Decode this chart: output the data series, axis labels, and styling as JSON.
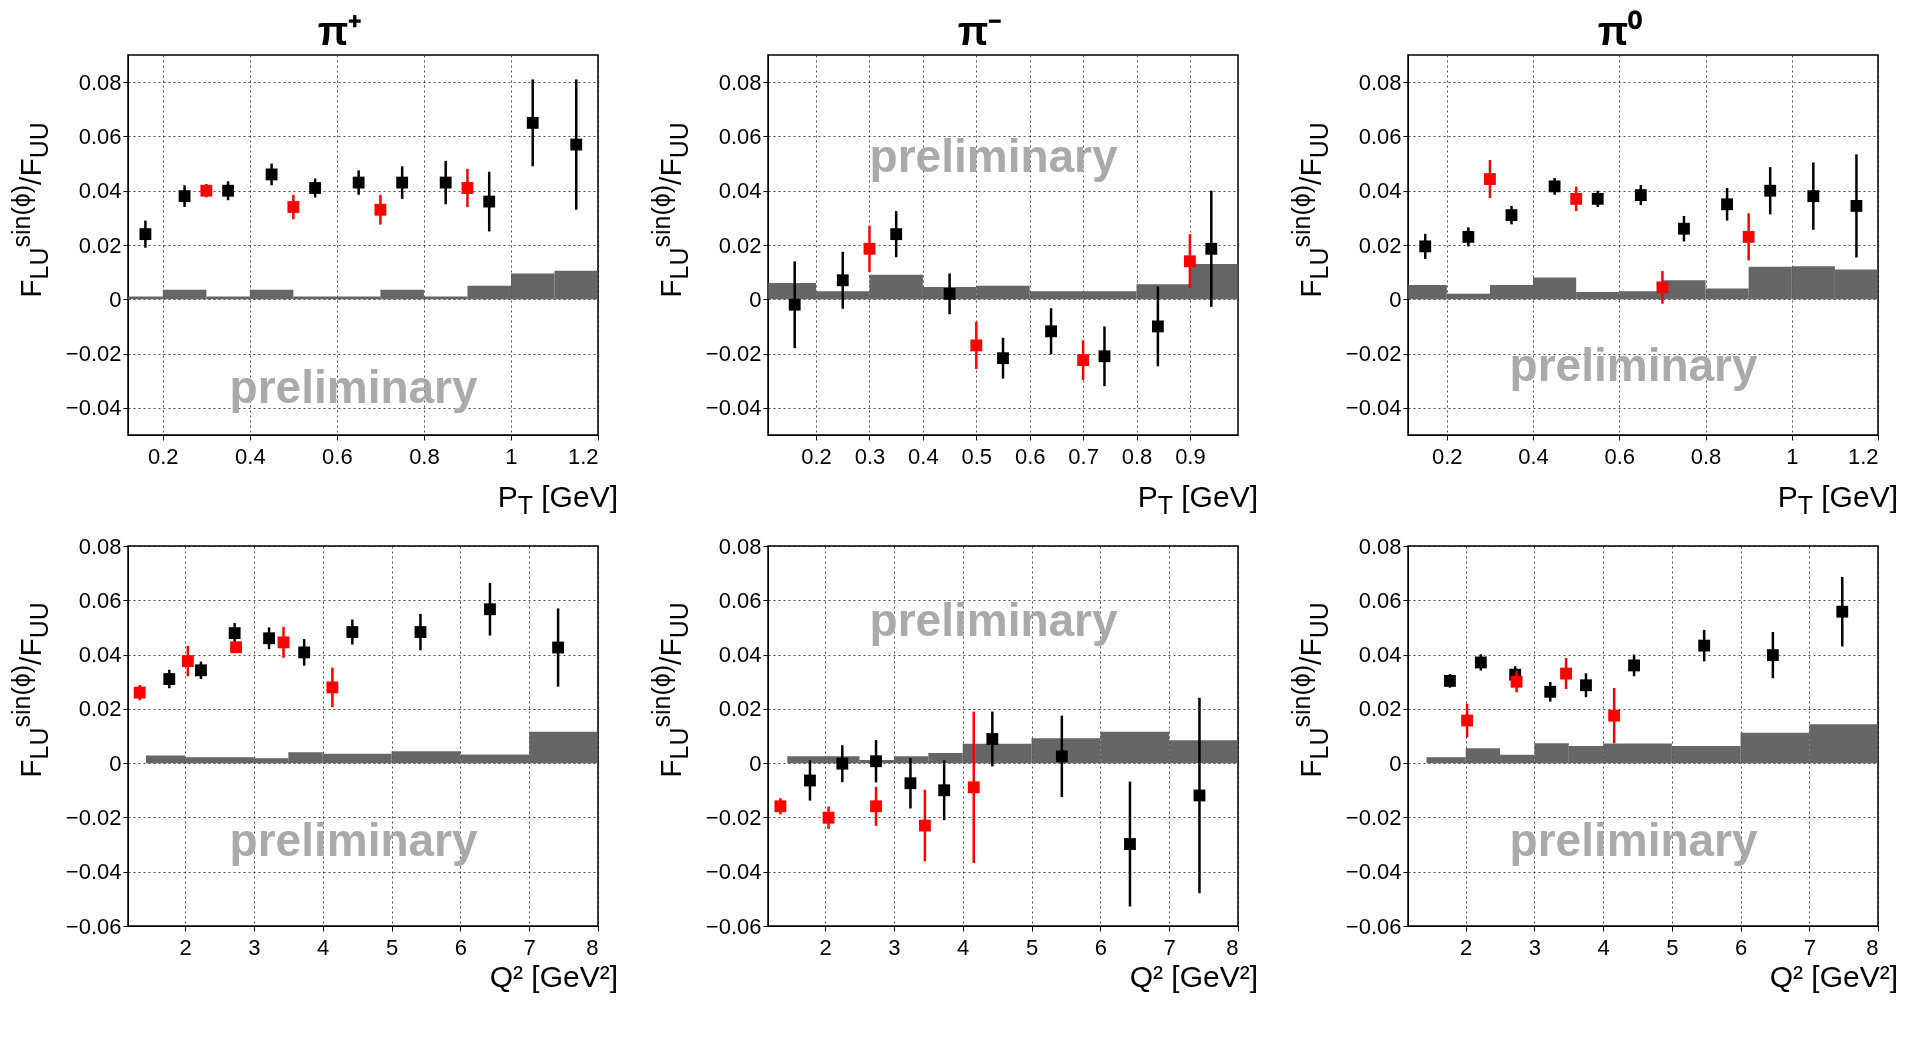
{
  "chart_data": [
    {
      "type": "scatter",
      "title": "π⁺",
      "xlabel": "P$_{T}$ [GeV]",
      "ylabel": "F$_{LU}$$^{sin(ϕ)}$/F$_{UU}$",
      "xlim": [
        0.12,
        1.2
      ],
      "xticks": [
        0.2,
        0.4,
        0.6,
        0.8,
        1,
        1.2
      ],
      "ylim": [
        -0.05,
        0.09
      ],
      "yticks": [
        -0.04,
        -0.02,
        0,
        0.02,
        0.04,
        0.06,
        0.08
      ],
      "grid": true,
      "marker": "square",
      "annotations": [
        "preliminary"
      ],
      "series": [
        {
          "type": "histogram",
          "color": "#555555",
          "bins": [
            0.12,
            0.2,
            0.3,
            0.4,
            0.5,
            0.6,
            0.7,
            0.8,
            0.9,
            1.0,
            1.1,
            1.2
          ],
          "values": [
            0.001,
            0.0035,
            0.001,
            0.0035,
            0.001,
            0.001,
            0.0035,
            0.001,
            0.005,
            0.0095,
            0.0105
          ]
        },
        {
          "color": "#000000",
          "x": [
            0.16,
            0.25,
            0.35,
            0.45,
            0.55,
            0.65,
            0.75,
            0.85,
            0.95,
            1.05,
            1.15
          ],
          "values": [
            0.024,
            0.038,
            0.04,
            0.046,
            0.041,
            0.043,
            0.043,
            0.043,
            0.036,
            0.065,
            0.057
          ],
          "errors": [
            0.005,
            0.004,
            0.0035,
            0.004,
            0.0035,
            0.0045,
            0.006,
            0.008,
            0.011,
            0.016,
            0.024
          ]
        },
        {
          "color": "#ff0000",
          "x": [
            0.3,
            0.5,
            0.7,
            0.9
          ],
          "values": [
            0.04,
            0.034,
            0.033,
            0.041
          ],
          "errors": [
            0.0025,
            0.0045,
            0.0055,
            0.007
          ]
        }
      ]
    },
    {
      "type": "scatter",
      "title": "π⁻",
      "xlabel": "P$_{T}$ [GeV]",
      "ylabel": "F$_{LU}$$^{sin(ϕ)}$/F$_{UU}$",
      "xlim": [
        0.11,
        0.99
      ],
      "xticks": [
        0.2,
        0.3,
        0.4,
        0.5,
        0.6,
        0.7,
        0.8,
        0.9
      ],
      "ylim": [
        -0.05,
        0.09
      ],
      "yticks": [
        -0.04,
        -0.02,
        0,
        0.02,
        0.04,
        0.06,
        0.08
      ],
      "grid": true,
      "marker": "square",
      "annotations": [
        "preliminary"
      ],
      "series": [
        {
          "type": "histogram",
          "color": "#555555",
          "bins": [
            0.11,
            0.2,
            0.3,
            0.4,
            0.5,
            0.6,
            0.7,
            0.8,
            0.9,
            0.99
          ],
          "values": [
            0.006,
            0.003,
            0.009,
            0.0045,
            0.005,
            0.003,
            0.003,
            0.0055,
            0.013
          ]
        },
        {
          "color": "#000000",
          "x": [
            0.16,
            0.25,
            0.35,
            0.45,
            0.55,
            0.64,
            0.74,
            0.84,
            0.94
          ],
          "values": [
            -0.002,
            0.007,
            0.024,
            0.002,
            -0.0217,
            -0.0118,
            -0.021,
            -0.01,
            0.0186
          ],
          "errors": [
            0.016,
            0.0105,
            0.0085,
            0.0075,
            0.0075,
            0.0085,
            0.011,
            0.0147,
            0.0214
          ]
        },
        {
          "color": "#ff0000",
          "x": [
            0.3,
            0.5,
            0.7,
            0.9
          ],
          "values": [
            0.0186,
            -0.017,
            -0.0224,
            0.014
          ],
          "errors": [
            0.0085,
            0.0087,
            0.0073,
            0.01
          ]
        }
      ]
    },
    {
      "type": "scatter",
      "title": "π⁰",
      "xlabel": "P$_{T}$ [GeV]",
      "ylabel": "F$_{LU}$$^{sin(ϕ)}$/F$_{UU}$",
      "xlim": [
        0.11,
        1.2
      ],
      "xticks": [
        0.2,
        0.4,
        0.6,
        0.8,
        1,
        1.2
      ],
      "ylim": [
        -0.05,
        0.09
      ],
      "yticks": [
        -0.04,
        -0.02,
        0,
        0.02,
        0.04,
        0.06,
        0.08
      ],
      "grid": true,
      "marker": "square",
      "annotations": [
        "preliminary"
      ],
      "series": [
        {
          "type": "histogram",
          "color": "#555555",
          "bins": [
            0.11,
            0.2,
            0.3,
            0.4,
            0.5,
            0.6,
            0.7,
            0.8,
            0.9,
            1.0,
            1.1,
            1.2
          ],
          "values": [
            0.0053,
            0.002,
            0.0053,
            0.008,
            0.0027,
            0.003,
            0.007,
            0.004,
            0.012,
            0.0122,
            0.011
          ]
        },
        {
          "color": "#000000",
          "x": [
            0.15,
            0.25,
            0.35,
            0.45,
            0.55,
            0.65,
            0.75,
            0.85,
            0.95,
            1.05,
            1.15
          ],
          "values": [
            0.0195,
            0.023,
            0.031,
            0.0416,
            0.037,
            0.0384,
            0.026,
            0.035,
            0.04,
            0.038,
            0.0344
          ],
          "errors": [
            0.0046,
            0.0035,
            0.0034,
            0.0031,
            0.003,
            0.0037,
            0.0047,
            0.006,
            0.0087,
            0.0124,
            0.019
          ]
        },
        {
          "color": "#ff0000",
          "x": [
            0.3,
            0.5,
            0.7,
            0.9
          ],
          "values": [
            0.0443,
            0.037,
            0.0044,
            0.023
          ],
          "errors": [
            0.007,
            0.0045,
            0.006,
            0.0087
          ]
        }
      ]
    },
    {
      "type": "scatter",
      "xlabel": "Q² [GeV²]",
      "ylabel": "F$_{LU}$$^{sin(ϕ)}$/F$_{UU}$",
      "xlim": [
        1.17,
        8
      ],
      "xticks": [
        2,
        3,
        4,
        5,
        6,
        7,
        8
      ],
      "ylim": [
        -0.06,
        0.08
      ],
      "yticks": [
        -0.06,
        -0.04,
        -0.02,
        0,
        0.02,
        0.04,
        0.06,
        0.08
      ],
      "grid": true,
      "marker": "square",
      "annotations": [
        "preliminary"
      ],
      "series": [
        {
          "type": "histogram",
          "color": "#555555",
          "bins": [
            1.43,
            2,
            3,
            3.5,
            4,
            5,
            6,
            7,
            8
          ],
          "values": [
            0.0028,
            0.0022,
            0.0018,
            0.004,
            0.0035,
            0.0044,
            0.0032,
            0.0116
          ]
        },
        {
          "color": "#000000",
          "x": [
            1.77,
            2.23,
            2.72,
            3.22,
            3.73,
            4.43,
            5.42,
            6.43,
            7.42
          ],
          "values": [
            0.031,
            0.0342,
            0.0479,
            0.046,
            0.0408,
            0.0483,
            0.0483,
            0.0567,
            0.0426
          ],
          "errors": [
            0.0034,
            0.0032,
            0.0037,
            0.004,
            0.0049,
            0.0046,
            0.0067,
            0.0097,
            0.0144
          ]
        },
        {
          "color": "#ff0000",
          "x": [
            1.34,
            2.04,
            2.74,
            3.43,
            4.14
          ],
          "values": [
            0.026,
            0.0376,
            0.0427,
            0.0445,
            0.0279
          ],
          "errors": [
            0.0028,
            0.0056,
            0.002,
            0.0057,
            0.0073
          ]
        }
      ]
    },
    {
      "type": "scatter",
      "xlabel": "Q² [GeV²]",
      "ylabel": "F$_{LU}$$^{sin(ϕ)}$/F$_{UU}$",
      "xlim": [
        1.17,
        8
      ],
      "xticks": [
        2,
        3,
        4,
        5,
        6,
        7,
        8
      ],
      "ylim": [
        -0.06,
        0.08
      ],
      "yticks": [
        -0.06,
        -0.04,
        -0.02,
        0,
        0.02,
        0.04,
        0.06,
        0.08
      ],
      "grid": true,
      "marker": "square",
      "annotations": [
        "preliminary"
      ],
      "series": [
        {
          "type": "histogram",
          "color": "#555555",
          "bins": [
            1.45,
            2.5,
            3,
            3.5,
            4,
            5,
            6,
            7,
            8
          ],
          "values": [
            0.0025,
            0.0012,
            0.0025,
            0.0037,
            0.0071,
            0.0092,
            0.0116,
            0.0084
          ]
        },
        {
          "color": "#000000",
          "x": [
            1.78,
            2.25,
            2.74,
            3.24,
            3.73,
            4.43,
            5.44,
            6.43,
            7.44
          ],
          "values": [
            -0.0064,
            -0.0002,
            0.0007,
            -0.0074,
            -0.01,
            0.0089,
            0.0025,
            -0.0298,
            -0.0119
          ],
          "errors": [
            0.0074,
            0.0068,
            0.0078,
            0.0093,
            0.011,
            0.0101,
            0.015,
            0.023,
            0.036
          ]
        },
        {
          "color": "#ff0000",
          "x": [
            1.35,
            2.05,
            2.74,
            3.45,
            4.16
          ],
          "values": [
            -0.0159,
            -0.0201,
            -0.0159,
            -0.023,
            -0.0089
          ],
          "errors": [
            0.003,
            0.0041,
            0.0072,
            0.0132,
            0.0279
          ]
        }
      ]
    },
    {
      "type": "scatter",
      "xlabel": "Q² [GeV²]",
      "ylabel": "F$_{LU}$$^{sin(ϕ)}$/F$_{UU}$",
      "xlim": [
        1.16,
        8
      ],
      "xticks": [
        2,
        3,
        4,
        5,
        6,
        7,
        8
      ],
      "ylim": [
        -0.06,
        0.08
      ],
      "yticks": [
        -0.06,
        -0.04,
        -0.02,
        0,
        0.02,
        0.04,
        0.06,
        0.08
      ],
      "grid": true,
      "marker": "square",
      "annotations": [
        "preliminary"
      ],
      "series": [
        {
          "type": "histogram",
          "color": "#555555",
          "bins": [
            1.43,
            2,
            2.5,
            3,
            3.5,
            4,
            5,
            6,
            7,
            8
          ],
          "values": [
            0.0022,
            0.0055,
            0.0031,
            0.0073,
            0.0063,
            0.0072,
            0.0063,
            0.0112,
            0.0143
          ]
        },
        {
          "color": "#000000",
          "x": [
            1.77,
            2.22,
            2.72,
            3.23,
            3.75,
            4.45,
            5.47,
            6.47,
            7.48
          ],
          "values": [
            0.0303,
            0.0371,
            0.0326,
            0.0263,
            0.0287,
            0.036,
            0.0433,
            0.0398,
            0.0558
          ],
          "errors": [
            0.0025,
            0.003,
            0.0031,
            0.0036,
            0.0044,
            0.004,
            0.0058,
            0.0085,
            0.0128
          ]
        },
        {
          "color": "#ff0000",
          "x": [
            2.02,
            2.74,
            3.46,
            4.16
          ],
          "values": [
            0.0157,
            0.03,
            0.033,
            0.0175
          ],
          "errors": [
            0.0062,
            0.0039,
            0.0057,
            0.0102
          ]
        }
      ]
    }
  ]
}
